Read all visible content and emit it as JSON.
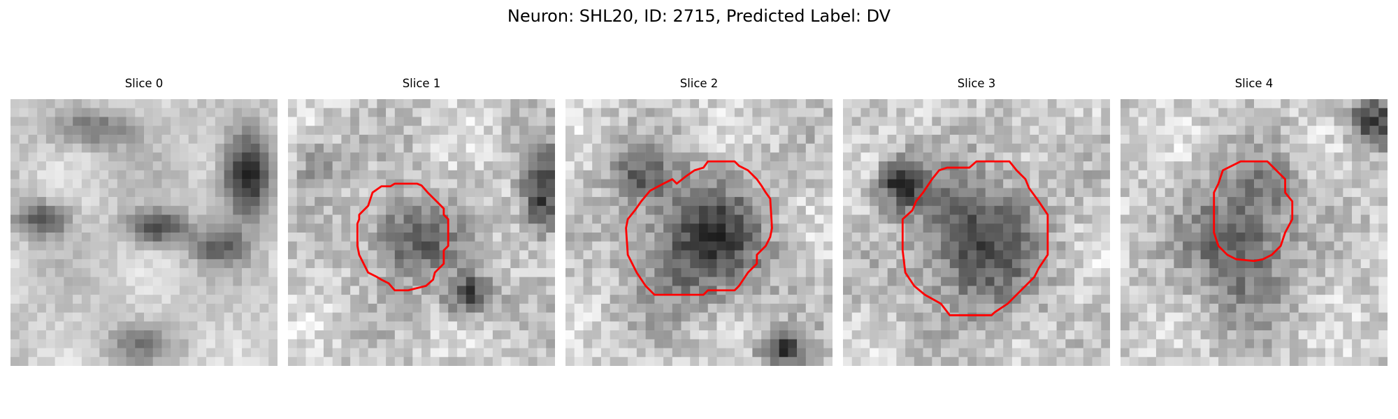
{
  "figure": {
    "title": "Neuron: SHL20, ID: 2715, Predicted Label: DV"
  },
  "panels": [
    {
      "title": "Slice 0",
      "has_contour": false,
      "contour_color": "#ff0000"
    },
    {
      "title": "Slice 1",
      "has_contour": true,
      "contour_color": "#ff0000"
    },
    {
      "title": "Slice 2",
      "has_contour": true,
      "contour_color": "#ff0000"
    },
    {
      "title": "Slice 3",
      "has_contour": true,
      "contour_color": "#ff0000"
    },
    {
      "title": "Slice 4",
      "has_contour": true,
      "contour_color": "#ff0000"
    }
  ],
  "colormap": "gray"
}
